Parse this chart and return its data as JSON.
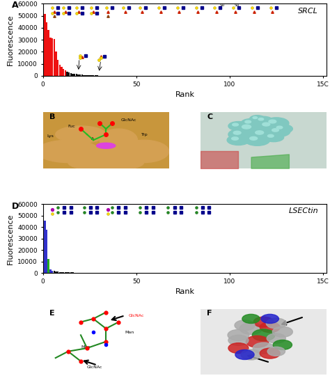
{
  "panel_A": {
    "label": "A",
    "title": "SRCL",
    "xlabel": "Rank",
    "ylabel": "Fluorescence",
    "ylim": [
      0,
      60000
    ],
    "yticks": [
      0,
      10000,
      20000,
      30000,
      40000,
      50000,
      60000
    ],
    "xlim": [
      0,
      152
    ],
    "xticks": [
      0,
      50,
      100,
      150
    ],
    "xticklabels": [
      "0",
      "50",
      "100",
      "15C"
    ],
    "n_bars": 150,
    "red_bars": 12,
    "red_values": [
      51500,
      44500,
      38000,
      32000,
      31500,
      30500,
      20500,
      13500,
      9000,
      7500,
      6000,
      4500
    ],
    "bar_color_red": "#EE1111",
    "bar_color_black": "#111111"
  },
  "panel_D": {
    "label": "D",
    "title": "LSECtin",
    "xlabel": "Rank",
    "ylabel": "Fluorescence",
    "ylim": [
      0,
      60000
    ],
    "yticks": [
      0,
      10000,
      20000,
      30000,
      40000,
      50000,
      60000
    ],
    "xlim": [
      0,
      152
    ],
    "xticks": [
      0,
      50,
      100,
      150
    ],
    "xticklabels": [
      "0",
      "50",
      "100",
      "15C"
    ],
    "blue_values": [
      45500,
      38000,
      3000,
      2000
    ],
    "green_value": 12500,
    "bar_color_blue": "#3333CC",
    "bar_color_green": "#22AA22",
    "bar_color_black": "#111111"
  },
  "colors": {
    "yellow_circle": "#FFD700",
    "blue_square": "#00008B",
    "red_triangle": "#CC2200",
    "green_circle": "#228B22",
    "purple_diamond": "#AA00AA",
    "brown_triangle": "#8B4513"
  },
  "background_color": "#FFFFFF",
  "font_size_label": 8,
  "font_size_axis": 6.5,
  "font_size_panel": 9
}
